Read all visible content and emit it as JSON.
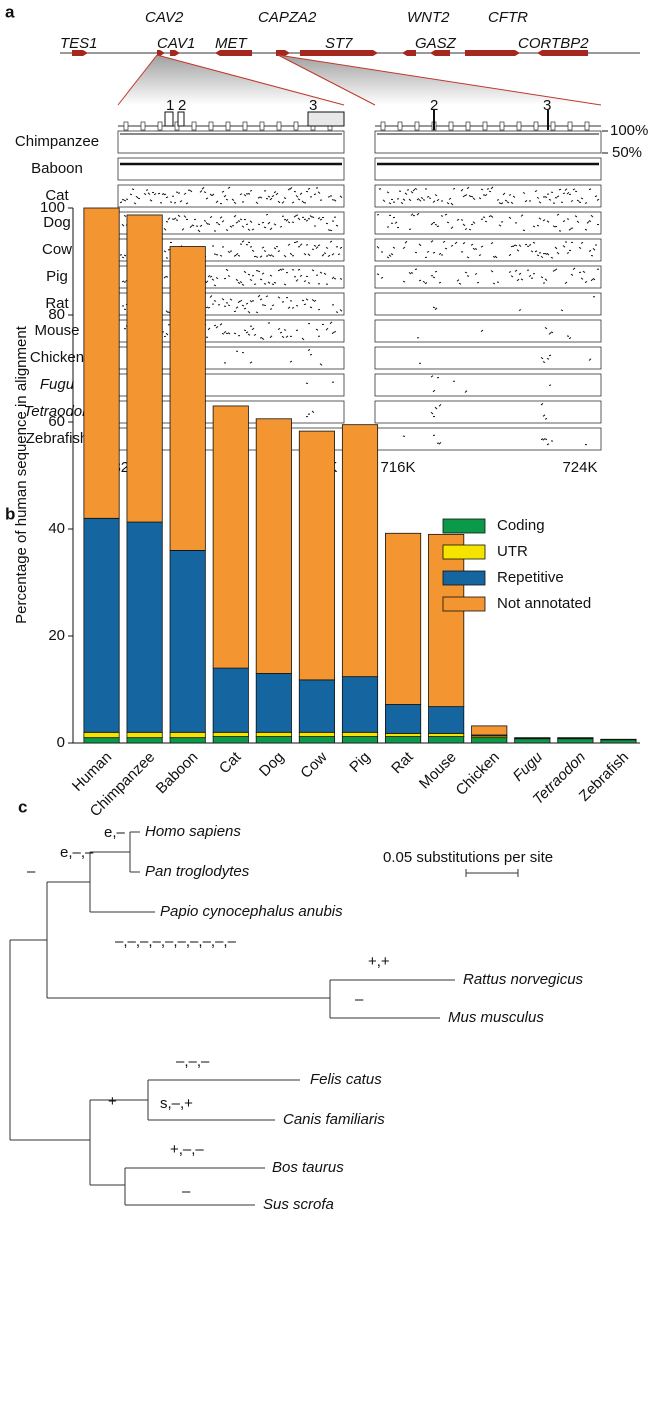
{
  "panel_a": {
    "label": "a",
    "genes_top": [
      "CAV2",
      "CAPZA2",
      "WNT2",
      "CFTR"
    ],
    "genes_bottom": [
      "TES1",
      "CAV1",
      "MET",
      "ST7",
      "GASZ",
      "CORTBP2"
    ],
    "exons_left": [
      "1",
      "2",
      "3"
    ],
    "exons_right": [
      "2",
      "3"
    ],
    "identity_labels": [
      "100%",
      "50%"
    ],
    "species": [
      "Chimpanzee",
      "Baboon",
      "Cat",
      "Dog",
      "Cow",
      "Pig",
      "Rat",
      "Mouse",
      "Chicken",
      "Fugu",
      "Tetraodon",
      "Zebrafish"
    ],
    "axis_left": [
      "328K",
      "336K"
    ],
    "axis_right": [
      "716K",
      "724K"
    ]
  },
  "chart_data": {
    "type": "bar",
    "stacked": true,
    "label": "b",
    "ylabel": "Percentage of human sequence in alignment",
    "categories": [
      "Human",
      "Chimpanzee",
      "Baboon",
      "Cat",
      "Dog",
      "Cow",
      "Pig",
      "Rat",
      "Mouse",
      "Chicken",
      "Fugu",
      "Tetraodon",
      "Zebrafish"
    ],
    "series": [
      {
        "name": "Coding",
        "color": "#0a9a4a",
        "values": [
          1,
          1,
          1,
          1.2,
          1.2,
          1.2,
          1.2,
          1.2,
          1.2,
          1,
          0.8,
          0.8,
          0.6
        ]
      },
      {
        "name": "UTR",
        "color": "#f5e400",
        "values": [
          1,
          1,
          1,
          0.8,
          0.8,
          0.8,
          0.8,
          0.6,
          0.6,
          0.3,
          0.1,
          0.1,
          0.05
        ]
      },
      {
        "name": "Repetitive",
        "color": "#1565a0",
        "values": [
          40,
          39.3,
          34,
          12,
          11,
          9.8,
          10.4,
          5.4,
          5,
          0.2,
          0,
          0,
          0
        ]
      },
      {
        "name": "Not annotated",
        "color": "#f39530",
        "values": [
          58,
          57.4,
          56.8,
          49,
          47.6,
          46.5,
          47.1,
          32,
          32.2,
          1.7,
          0.1,
          0.1,
          0.05
        ]
      }
    ],
    "ylim": [
      0,
      100
    ],
    "yticks": [
      0,
      20,
      40,
      60,
      80,
      100
    ],
    "legend": "upper right"
  },
  "panel_c": {
    "label": "c",
    "taxa": [
      "Homo sapiens",
      "Pan troglodytes",
      "Papio cynocephalus anubis",
      "Rattus norvegicus",
      "Mus musculus",
      "Felis catus",
      "Canis familiaris",
      "Bos taurus",
      "Sus scrofa"
    ],
    "branch_labels": [
      "e,–",
      "e,–,–",
      "–",
      "–,–,–,–,–,–,–,–,–,–",
      "+,+",
      "–",
      "–,–,–",
      "+",
      "s,–,+",
      "+,–,–",
      "–"
    ],
    "scale": "0.05 substitutions per site"
  }
}
